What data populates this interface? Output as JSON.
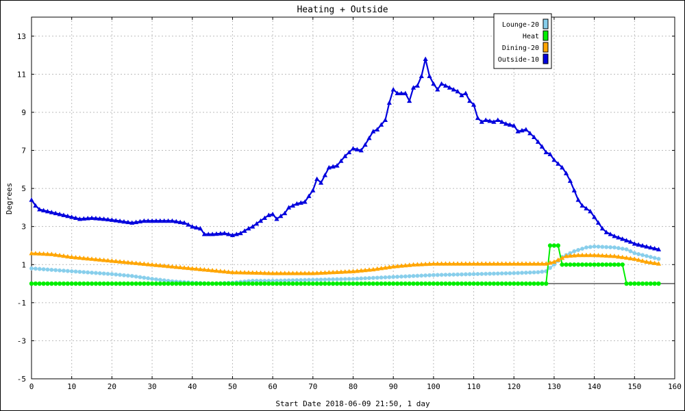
{
  "chart_data": {
    "type": "line",
    "title": "Heating + Outside",
    "xlabel": "Start Date 2018-06-09 21:50, 1 day",
    "ylabel": "Degrees",
    "xlim": [
      0,
      160
    ],
    "ylim": [
      -5,
      14
    ],
    "x_ticks": [
      0,
      10,
      20,
      30,
      40,
      50,
      60,
      70,
      80,
      90,
      100,
      110,
      120,
      130,
      140,
      150,
      160
    ],
    "y_ticks": [
      -5,
      -3,
      -1,
      1,
      3,
      5,
      7,
      9,
      11,
      13
    ],
    "grid": true,
    "zero_line": true,
    "legend_position": "top-right",
    "series": [
      {
        "name": "Lounge-20",
        "color": "#87ceeb",
        "marker": "star",
        "values": [
          [
            0,
            0.8
          ],
          [
            10,
            0.65
          ],
          [
            20,
            0.5
          ],
          [
            25,
            0.4
          ],
          [
            30,
            0.25
          ],
          [
            35,
            0.12
          ],
          [
            40,
            0.05
          ],
          [
            45,
            0.0
          ],
          [
            50,
            0.05
          ],
          [
            55,
            0.15
          ],
          [
            60,
            0.15
          ],
          [
            70,
            0.2
          ],
          [
            80,
            0.25
          ],
          [
            85,
            0.3
          ],
          [
            90,
            0.35
          ],
          [
            100,
            0.45
          ],
          [
            110,
            0.5
          ],
          [
            120,
            0.55
          ],
          [
            126,
            0.6
          ],
          [
            128,
            0.65
          ],
          [
            130,
            1.0
          ],
          [
            132,
            1.4
          ],
          [
            135,
            1.7
          ],
          [
            138,
            1.9
          ],
          [
            140,
            1.95
          ],
          [
            145,
            1.9
          ],
          [
            148,
            1.8
          ],
          [
            150,
            1.6
          ],
          [
            152,
            1.5
          ],
          [
            154,
            1.4
          ],
          [
            156,
            1.3
          ]
        ]
      },
      {
        "name": "Heat",
        "color": "#00ee00",
        "marker": "circle",
        "values": [
          [
            0,
            0
          ],
          [
            10,
            0
          ],
          [
            20,
            0
          ],
          [
            30,
            0
          ],
          [
            40,
            0
          ],
          [
            50,
            0
          ],
          [
            60,
            0
          ],
          [
            70,
            0
          ],
          [
            80,
            0
          ],
          [
            90,
            0
          ],
          [
            100,
            0
          ],
          [
            110,
            0
          ],
          [
            120,
            0
          ],
          [
            128,
            0
          ],
          [
            129,
            2
          ],
          [
            130,
            2
          ],
          [
            131,
            2
          ],
          [
            132,
            1
          ],
          [
            140,
            1
          ],
          [
            147,
            1
          ],
          [
            148,
            0
          ],
          [
            150,
            0
          ],
          [
            156,
            0
          ]
        ]
      },
      {
        "name": "Dining-20",
        "color": "#ffa500",
        "marker": "triangle",
        "values": [
          [
            0,
            1.6
          ],
          [
            5,
            1.55
          ],
          [
            10,
            1.4
          ],
          [
            20,
            1.2
          ],
          [
            30,
            1.0
          ],
          [
            40,
            0.8
          ],
          [
            45,
            0.7
          ],
          [
            50,
            0.6
          ],
          [
            55,
            0.58
          ],
          [
            60,
            0.55
          ],
          [
            70,
            0.55
          ],
          [
            75,
            0.6
          ],
          [
            80,
            0.65
          ],
          [
            85,
            0.75
          ],
          [
            90,
            0.9
          ],
          [
            95,
            1.0
          ],
          [
            100,
            1.05
          ],
          [
            110,
            1.05
          ],
          [
            120,
            1.05
          ],
          [
            128,
            1.05
          ],
          [
            130,
            1.15
          ],
          [
            133,
            1.45
          ],
          [
            136,
            1.5
          ],
          [
            140,
            1.5
          ],
          [
            145,
            1.45
          ],
          [
            150,
            1.3
          ],
          [
            153,
            1.15
          ],
          [
            156,
            1.05
          ]
        ]
      },
      {
        "name": "Outside-10",
        "color": "#0000dd",
        "marker": "triangle",
        "values": [
          [
            0,
            4.4
          ],
          [
            1,
            4.1
          ],
          [
            2,
            3.9
          ],
          [
            4,
            3.8
          ],
          [
            6,
            3.7
          ],
          [
            8,
            3.6
          ],
          [
            10,
            3.5
          ],
          [
            12,
            3.4
          ],
          [
            15,
            3.45
          ],
          [
            18,
            3.4
          ],
          [
            20,
            3.35
          ],
          [
            25,
            3.2
          ],
          [
            28,
            3.3
          ],
          [
            30,
            3.3
          ],
          [
            35,
            3.3
          ],
          [
            38,
            3.2
          ],
          [
            40,
            3.0
          ],
          [
            42,
            2.9
          ],
          [
            43,
            2.6
          ],
          [
            45,
            2.6
          ],
          [
            48,
            2.65
          ],
          [
            50,
            2.55
          ],
          [
            52,
            2.65
          ],
          [
            54,
            2.9
          ],
          [
            55,
            3.0
          ],
          [
            57,
            3.3
          ],
          [
            59,
            3.6
          ],
          [
            60,
            3.65
          ],
          [
            61,
            3.4
          ],
          [
            63,
            3.7
          ],
          [
            64,
            4.0
          ],
          [
            66,
            4.2
          ],
          [
            68,
            4.3
          ],
          [
            70,
            4.9
          ],
          [
            71,
            5.5
          ],
          [
            72,
            5.3
          ],
          [
            74,
            6.1
          ],
          [
            76,
            6.2
          ],
          [
            78,
            6.7
          ],
          [
            80,
            7.1
          ],
          [
            82,
            7.0
          ],
          [
            83,
            7.3
          ],
          [
            85,
            8.0
          ],
          [
            86,
            8.1
          ],
          [
            88,
            8.6
          ],
          [
            89,
            9.5
          ],
          [
            90,
            10.2
          ],
          [
            91,
            10.0
          ],
          [
            93,
            10.0
          ],
          [
            94,
            9.6
          ],
          [
            95,
            10.3
          ],
          [
            96,
            10.4
          ],
          [
            97,
            10.9
          ],
          [
            98,
            11.8
          ],
          [
            99,
            10.9
          ],
          [
            100,
            10.5
          ],
          [
            101,
            10.2
          ],
          [
            102,
            10.5
          ],
          [
            104,
            10.3
          ],
          [
            105,
            10.2
          ],
          [
            106,
            10.1
          ],
          [
            107,
            9.9
          ],
          [
            108,
            10.0
          ],
          [
            109,
            9.6
          ],
          [
            110,
            9.4
          ],
          [
            111,
            8.7
          ],
          [
            112,
            8.5
          ],
          [
            113,
            8.6
          ],
          [
            115,
            8.5
          ],
          [
            116,
            8.6
          ],
          [
            118,
            8.4
          ],
          [
            120,
            8.3
          ],
          [
            121,
            8.0
          ],
          [
            123,
            8.1
          ],
          [
            125,
            7.7
          ],
          [
            127,
            7.2
          ],
          [
            128,
            6.9
          ],
          [
            129,
            6.8
          ],
          [
            130,
            6.5
          ],
          [
            131,
            6.3
          ],
          [
            132,
            6.1
          ],
          [
            133,
            5.8
          ],
          [
            134,
            5.4
          ],
          [
            135,
            4.9
          ],
          [
            136,
            4.4
          ],
          [
            137,
            4.1
          ],
          [
            139,
            3.8
          ],
          [
            140,
            3.5
          ],
          [
            141,
            3.2
          ],
          [
            142,
            2.9
          ],
          [
            143,
            2.7
          ],
          [
            145,
            2.5
          ],
          [
            147,
            2.35
          ],
          [
            149,
            2.2
          ],
          [
            150,
            2.1
          ],
          [
            152,
            2.0
          ],
          [
            154,
            1.9
          ],
          [
            155,
            1.85
          ],
          [
            156,
            1.8
          ]
        ]
      }
    ]
  }
}
